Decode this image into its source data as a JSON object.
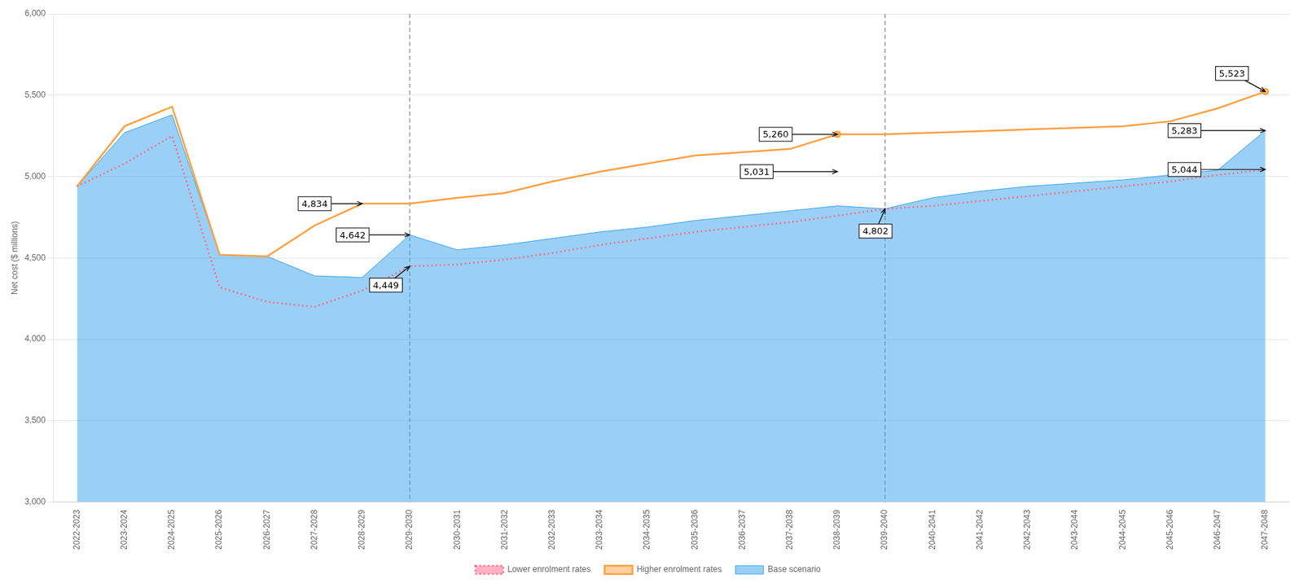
{
  "chart_data": {
    "type": "line",
    "categories": [
      "2022-2023",
      "2023-2024",
      "2024-2025",
      "2025-2026",
      "2026-2027",
      "2027-2028",
      "2028-2029",
      "2029-2030",
      "2030-2031",
      "2031-2032",
      "2032-2033",
      "2033-2034",
      "2034-2035",
      "2035-2036",
      "2036-2037",
      "2037-2038",
      "2038-2039",
      "2039-2040",
      "2040-2041",
      "2041-2042",
      "2042-2043",
      "2043-2044",
      "2044-2045",
      "2045-2046",
      "2046-2047",
      "2047-2048"
    ],
    "series": [
      {
        "name": "Base scenario",
        "type": "area",
        "values": [
          4940,
          5270,
          5380,
          4520,
          4510,
          4390,
          4380,
          4642,
          4550,
          4580,
          4620,
          4660,
          4690,
          4730,
          4760,
          4790,
          4820,
          4802,
          4870,
          4910,
          4940,
          4960,
          4980,
          5010,
          5040,
          5283
        ]
      },
      {
        "name": "Lower enrolment rates",
        "type": "line",
        "line_style": "dotted",
        "values": [
          4940,
          5080,
          5250,
          4320,
          4230,
          4200,
          4300,
          4449,
          4460,
          4490,
          4530,
          4580,
          4620,
          4660,
          4690,
          4720,
          4760,
          4802,
          4820,
          4850,
          4880,
          4910,
          4940,
          4970,
          5010,
          5044
        ]
      },
      {
        "name": "Higher enrolment rates",
        "type": "line",
        "line_style": "solid",
        "marker": "circle",
        "markers": [
          "2038-2039",
          "2047-2048"
        ],
        "values": [
          4940,
          5310,
          5430,
          4520,
          4510,
          4700,
          4834,
          4834,
          4870,
          4900,
          4970,
          5030,
          5080,
          5130,
          5150,
          5170,
          5260,
          5260,
          5270,
          5280,
          5290,
          5300,
          5310,
          5340,
          5420,
          5523
        ]
      }
    ],
    "ylim": [
      3000,
      6000
    ],
    "yticks": [
      {
        "value": 3000,
        "label": "3,000"
      },
      {
        "value": 3500,
        "label": "3,500"
      },
      {
        "value": 4000,
        "label": "4,000"
      },
      {
        "value": 4500,
        "label": "4,500"
      },
      {
        "value": 5000,
        "label": "5,000"
      },
      {
        "value": 5500,
        "label": "5,500"
      },
      {
        "value": 6000,
        "label": "6,000"
      }
    ],
    "ylabel": "Net cost ($ millions)",
    "grid": "y",
    "legend": "bottom",
    "vlines": [
      "2029-2030",
      "2039-2040"
    ],
    "annotations": [
      {
        "x": "2028-2029",
        "y": 4834,
        "text": "4,834"
      },
      {
        "x": "2038-2039",
        "y": 5260,
        "text": "5,260"
      },
      {
        "x": "2047-2048",
        "y": 5523,
        "text": "5,523"
      },
      {
        "x": "2029-2030",
        "y": 4642,
        "text": "4,642"
      },
      {
        "x": "2039-2040",
        "y": 4802,
        "text": "4,802"
      },
      {
        "x": "2047-2048",
        "y": 5283,
        "text": "5,283"
      },
      {
        "x": "2029-2030",
        "y": 4449,
        "text": "4,449"
      },
      {
        "x": "2038-2039",
        "y": 5031,
        "text": "5,031"
      },
      {
        "x": "2047-2048",
        "y": 5044,
        "text": "5,044"
      }
    ]
  }
}
